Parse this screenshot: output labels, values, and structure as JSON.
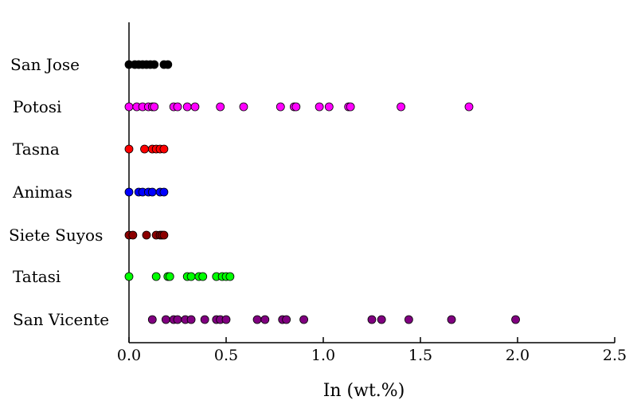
{
  "chart_data": {
    "type": "scatter",
    "title": "",
    "xlabel": "In (wt.%)",
    "ylabel": "",
    "xlim": [
      0,
      2.5
    ],
    "xticks": [
      0.0,
      0.5,
      1.0,
      1.5,
      2.0,
      2.5
    ],
    "xtick_labels": [
      "0.0",
      "0.5",
      "1.0",
      "1.5",
      "2.0",
      "2.5"
    ],
    "grid": false,
    "categories": [
      "San Jose",
      "Potosi",
      "Tasna",
      "Animas",
      "Siete Suyos",
      "Tatasi",
      "San Vicente"
    ],
    "series": [
      {
        "category": "San Jose",
        "color": "#000000",
        "x": [
          0.0,
          0.03,
          0.05,
          0.07,
          0.09,
          0.11,
          0.13,
          0.18,
          0.2
        ]
      },
      {
        "category": "Potosi",
        "color": "#ff00ff",
        "x": [
          0.0,
          0.04,
          0.07,
          0.1,
          0.12,
          0.13,
          0.23,
          0.25,
          0.3,
          0.34,
          0.47,
          0.59,
          0.78,
          0.85,
          0.86,
          0.98,
          1.03,
          1.13,
          1.14,
          1.4,
          1.75
        ]
      },
      {
        "category": "Tasna",
        "color": "#ff0000",
        "x": [
          0.0,
          0.08,
          0.12,
          0.14,
          0.16,
          0.18
        ]
      },
      {
        "category": "Animas",
        "color": "#0000ff",
        "x": [
          0.0,
          0.05,
          0.07,
          0.1,
          0.12,
          0.16,
          0.18
        ]
      },
      {
        "category": "Siete Suyos",
        "color": "#8b0000",
        "x": [
          0.0,
          0.02,
          0.09,
          0.14,
          0.16,
          0.17,
          0.18
        ]
      },
      {
        "category": "Tatasi",
        "color": "#00ff00",
        "x": [
          0.0,
          0.14,
          0.2,
          0.21,
          0.3,
          0.32,
          0.36,
          0.38,
          0.45,
          0.48,
          0.5,
          0.52
        ]
      },
      {
        "category": "San Vicente",
        "color": "#800080",
        "x": [
          0.12,
          0.19,
          0.23,
          0.25,
          0.29,
          0.32,
          0.39,
          0.45,
          0.47,
          0.5,
          0.66,
          0.7,
          0.79,
          0.81,
          0.9,
          1.25,
          1.3,
          1.44,
          1.66,
          1.99
        ]
      }
    ]
  }
}
